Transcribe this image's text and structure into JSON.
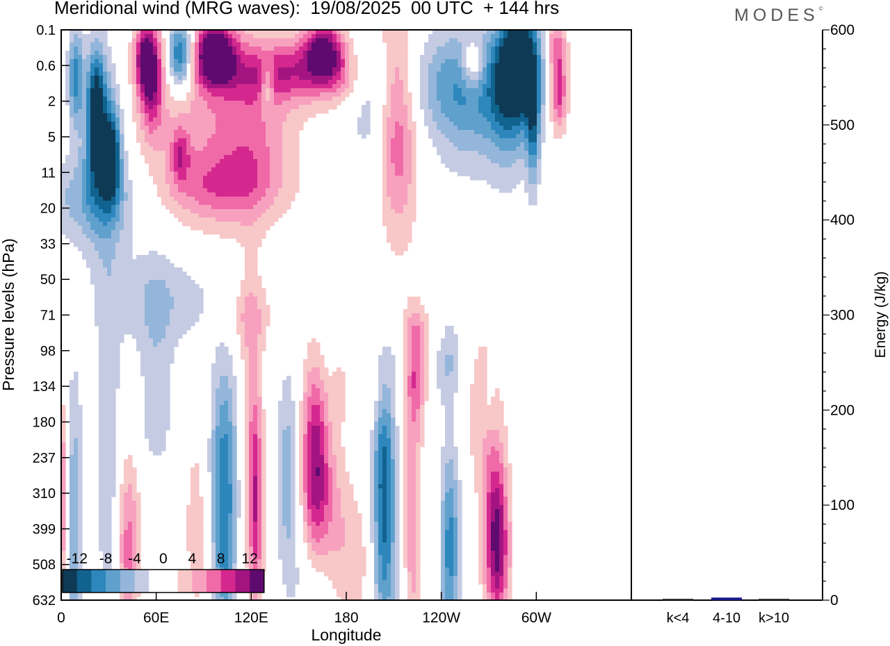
{
  "chart_data": [
    {
      "type": "heatmap",
      "title": "Meridional wind (MRG waves):  19/08/2025  00 UTC  + 144 hrs",
      "xlabel": "Longitude",
      "ylabel": "Pressure levels (hPa)",
      "x_ticks": [
        "0",
        "60E",
        "120E",
        "180",
        "120W",
        "60W"
      ],
      "y_ticks": [
        "0.1",
        "0.6",
        "2",
        "5",
        "11",
        "20",
        "33",
        "50",
        "71",
        "98",
        "134",
        "180",
        "237",
        "310",
        "399",
        "508",
        "632"
      ],
      "colorbar": {
        "labels": [
          "-12",
          "-8",
          "-4",
          "0",
          "4",
          "8",
          "12"
        ],
        "levels": [
          -14,
          -12,
          -10,
          -8,
          -6,
          -4,
          -2,
          2,
          4,
          6,
          8,
          10,
          12,
          14
        ],
        "colors": [
          "#0e3a56",
          "#11638f",
          "#2d87bd",
          "#5fa0cd",
          "#94b6da",
          "#c5cbe3",
          "#ffffff",
          "#ffffff",
          "#f8c7c8",
          "#f7a1bf",
          "#f06aa8",
          "#d4288f",
          "#a31481",
          "#5f0a6e"
        ]
      },
      "features": [
        {
          "x": 9,
          "y": 1.3,
          "value": -9,
          "sx": 3.5,
          "sy": 1.0
        },
        {
          "x": 22,
          "y": 2.3,
          "value": -12,
          "sx": 4,
          "sy": 1.2
        },
        {
          "x": 32,
          "y": 3.5,
          "value": -10,
          "sx": 4,
          "sy": 0.9
        },
        {
          "x": 26,
          "y": 3.0,
          "value": -7,
          "sx": 9,
          "sy": 2.0
        },
        {
          "x": 57,
          "y": 1.3,
          "value": 11,
          "sx": 5,
          "sy": 1.0
        },
        {
          "x": 52,
          "y": 0.8,
          "value": 8,
          "sx": 4,
          "sy": 0.6
        },
        {
          "x": 75,
          "y": 0.7,
          "value": -13,
          "sx": 6,
          "sy": 0.7
        },
        {
          "x": 97,
          "y": 0.7,
          "value": 15,
          "sx": 9,
          "sy": 0.6
        },
        {
          "x": 90,
          "y": 1.5,
          "value": 3,
          "sx": 50,
          "sy": 2.0
        },
        {
          "x": 166,
          "y": 0.6,
          "value": 12,
          "sx": 9,
          "sy": 0.6
        },
        {
          "x": 140,
          "y": 1.2,
          "value": 8,
          "sx": 25,
          "sy": 0.6
        },
        {
          "x": 130,
          "y": 1.5,
          "value": -6,
          "sx": 3,
          "sy": 0.5
        },
        {
          "x": 120,
          "y": 3.2,
          "value": 3.5,
          "sx": 15,
          "sy": 1.4
        },
        {
          "x": 95,
          "y": 4.0,
          "value": 3.3,
          "sx": 30,
          "sy": 1.5
        },
        {
          "x": 75,
          "y": 3.5,
          "value": 6,
          "sx": 4,
          "sy": 0.5
        },
        {
          "x": 212,
          "y": 2.5,
          "value": 9,
          "sx": 9,
          "sy": 2.2
        },
        {
          "x": 178,
          "y": 1.4,
          "value": 3,
          "sx": 10,
          "sy": 0.6
        },
        {
          "x": 197,
          "y": 2.5,
          "value": -3,
          "sx": 12,
          "sy": 1.5
        },
        {
          "x": 245,
          "y": 1.5,
          "value": -4,
          "sx": 40,
          "sy": 1.0
        },
        {
          "x": 255,
          "y": 2.0,
          "value": -5,
          "sx": 15,
          "sy": 1.5
        },
        {
          "x": 290,
          "y": 0.8,
          "value": -14,
          "sx": 9,
          "sy": 1.1
        },
        {
          "x": 282,
          "y": 2.0,
          "value": -7,
          "sx": 10,
          "sy": 1.5
        },
        {
          "x": 298,
          "y": 2.8,
          "value": -8,
          "sx": 3,
          "sy": 1.2
        },
        {
          "x": 312,
          "y": 0.4,
          "value": 6,
          "sx": 5,
          "sy": 0.5
        },
        {
          "x": 314,
          "y": 1.7,
          "value": 10,
          "sx": 4,
          "sy": 0.8
        },
        {
          "x": 260,
          "y": 1.0,
          "value": 7,
          "sx": 5,
          "sy": 0.5
        },
        {
          "x": 20,
          "y": 4.7,
          "value": -5,
          "sx": 25,
          "sy": 0.9
        },
        {
          "x": 100,
          "y": 4.4,
          "value": 3.8,
          "sx": 25,
          "sy": 0.6
        },
        {
          "x": 65,
          "y": 7.5,
          "value": -3.5,
          "sx": 28,
          "sy": 1.0
        },
        {
          "x": 118,
          "y": 8.0,
          "value": 3.5,
          "sx": 12,
          "sy": 0.7
        },
        {
          "x": 225,
          "y": 8.5,
          "value": 3.0,
          "sx": 20,
          "sy": 0.5
        },
        {
          "x": 200,
          "y": 9.5,
          "value": 3.8,
          "sx": 7,
          "sy": 1.0
        },
        {
          "x": 245,
          "y": 9.0,
          "value": -4.5,
          "sx": 7,
          "sy": 1.0
        },
        {
          "x": 200,
          "y": 9.0,
          "value": -3.2,
          "sx": 22,
          "sy": 0.7
        },
        {
          "x": 30,
          "y": 12.0,
          "value": -3.5,
          "sx": 6,
          "sy": 4.0
        },
        {
          "x": 60,
          "y": 10.5,
          "value": -3.3,
          "sx": 8,
          "sy": 2.5
        },
        {
          "x": 8,
          "y": 14.0,
          "value": -6,
          "sx": 4,
          "sy": 3.0
        },
        {
          "x": 1,
          "y": 13.2,
          "value": 7,
          "sx": 2.5,
          "sy": 2.0
        },
        {
          "x": 42,
          "y": 14.5,
          "value": 7,
          "sx": 5,
          "sy": 1.8
        },
        {
          "x": 60,
          "y": 13.5,
          "value": 2.5,
          "sx": 8,
          "sy": 1.0
        },
        {
          "x": 103,
          "y": 12.0,
          "value": -8,
          "sx": 6,
          "sy": 2.0
        },
        {
          "x": 103,
          "y": 15.0,
          "value": -6,
          "sx": 5,
          "sy": 1.7
        },
        {
          "x": 85,
          "y": 14.0,
          "value": 3.2,
          "sx": 5,
          "sy": 2.0
        },
        {
          "x": 120,
          "y": 11.0,
          "value": 4.0,
          "sx": 5,
          "sy": 3.0
        },
        {
          "x": 123,
          "y": 13.5,
          "value": 8,
          "sx": 3,
          "sy": 2.0
        },
        {
          "x": 143,
          "y": 12.5,
          "value": -5.5,
          "sx": 5,
          "sy": 2.0
        },
        {
          "x": 160,
          "y": 12.0,
          "value": 10,
          "sx": 6,
          "sy": 2.0
        },
        {
          "x": 168,
          "y": 13.3,
          "value": 4,
          "sx": 9,
          "sy": 1.6
        },
        {
          "x": 183,
          "y": 15.0,
          "value": 3.2,
          "sx": 12,
          "sy": 1.5
        },
        {
          "x": 160,
          "y": 15.5,
          "value": -3.2,
          "sx": 10,
          "sy": 1.2
        },
        {
          "x": 177,
          "y": 9.5,
          "value": 3.2,
          "sx": 5,
          "sy": 1.0
        },
        {
          "x": 204,
          "y": 12.5,
          "value": -11,
          "sx": 5,
          "sy": 2.2
        },
        {
          "x": 204,
          "y": 15.5,
          "value": -4,
          "sx": 6,
          "sy": 1.5
        },
        {
          "x": 224,
          "y": 9.5,
          "value": 7,
          "sx": 5,
          "sy": 1.0
        },
        {
          "x": 222,
          "y": 13.5,
          "value": 5.5,
          "sx": 4,
          "sy": 3.0
        },
        {
          "x": 245,
          "y": 14.5,
          "value": -9,
          "sx": 5,
          "sy": 2.0
        },
        {
          "x": 238,
          "y": 14.0,
          "value": 2.5,
          "sx": 3,
          "sy": 1.5
        },
        {
          "x": 262,
          "y": 10.5,
          "value": 2.5,
          "sx": 8,
          "sy": 1.5
        },
        {
          "x": 272,
          "y": 13.0,
          "value": 5,
          "sx": 6,
          "sy": 2.5
        },
        {
          "x": 276,
          "y": 14.5,
          "value": 10,
          "sx": 5,
          "sy": 1.5
        },
        {
          "x": 270,
          "y": 10.5,
          "value": -2.5,
          "sx": 4,
          "sy": 0.8
        }
      ]
    },
    {
      "type": "bar",
      "categories": [
        "k<4",
        "4-10",
        "k>10"
      ],
      "values": [
        0,
        2,
        0
      ],
      "ylabel": "Energy (J/kg)",
      "ylim": [
        0,
        600
      ],
      "y_ticks": [
        "0",
        "100",
        "200",
        "300",
        "400",
        "500",
        "600"
      ]
    }
  ]
}
